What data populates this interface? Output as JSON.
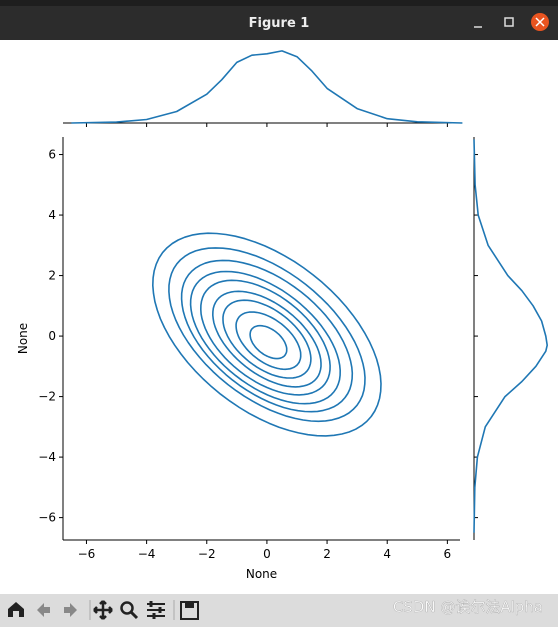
{
  "window": {
    "title": "Figure 1",
    "watermark": "CSDN @诶尔法Alpha"
  },
  "chart_data": {
    "type": "kde",
    "xlabel": "None",
    "ylabel": "None",
    "color": "#1f77b4",
    "xlim": [
      -6.78,
      6.42
    ],
    "ylim": [
      -6.74,
      6.58
    ],
    "xticks": [
      {
        "value": -6,
        "label": "−6"
      },
      {
        "value": -4,
        "label": "−4"
      },
      {
        "value": -2,
        "label": "−2"
      },
      0,
      2,
      4,
      6
    ],
    "yticks": [
      {
        "value": -6,
        "label": "−6"
      },
      {
        "value": -4,
        "label": "−4"
      },
      {
        "value": -2,
        "label": "−2"
      },
      0,
      2,
      4,
      6
    ],
    "contour_angle": -38,
    "contours": [
      {
        "cx": 0,
        "cy": 0.05,
        "rx": 4.4,
        "ry": 2.5
      },
      {
        "cx": 0,
        "cy": 0.05,
        "rx": 3.8,
        "ry": 2.1
      },
      {
        "cx": 0,
        "cy": 0,
        "rx": 3.3,
        "ry": 1.85
      },
      {
        "cx": -0.05,
        "cy": -0.05,
        "rx": 2.9,
        "ry": 1.6
      },
      {
        "cx": -0.05,
        "cy": -0.05,
        "rx": 2.5,
        "ry": 1.4
      },
      {
        "cx": 0,
        "cy": -0.1,
        "rx": 2.1,
        "ry": 1.15
      },
      {
        "cx": 0,
        "cy": -0.1,
        "rx": 1.7,
        "ry": 0.95
      },
      {
        "cx": 0.05,
        "cy": -0.15,
        "rx": 1.25,
        "ry": 0.7
      },
      {
        "cx": 0.05,
        "cy": -0.2,
        "rx": 0.7,
        "ry": 0.42
      }
    ],
    "marginal_x": {
      "x": [
        -6.5,
        -5,
        -4,
        -3,
        -2,
        -1.5,
        -1,
        -0.5,
        0,
        0.5,
        1,
        1.5,
        2,
        3,
        4,
        5,
        6.5
      ],
      "density": [
        0,
        0.003,
        0.012,
        0.04,
        0.1,
        0.15,
        0.21,
        0.235,
        0.24,
        0.25,
        0.23,
        0.18,
        0.12,
        0.05,
        0.015,
        0.004,
        0
      ],
      "ylim": [
        0,
        0.26
      ]
    },
    "marginal_y": {
      "y": [
        6.5,
        5,
        4,
        3,
        2,
        1.5,
        1,
        0.5,
        0,
        -0.3,
        -0.5,
        -1,
        -1.5,
        -2,
        -3,
        -4,
        -5,
        -6.5
      ],
      "density": [
        0,
        0.004,
        0.015,
        0.05,
        0.12,
        0.17,
        0.21,
        0.24,
        0.255,
        0.26,
        0.255,
        0.22,
        0.17,
        0.11,
        0.04,
        0.012,
        0.003,
        0
      ],
      "xlim": [
        0,
        0.27
      ]
    }
  }
}
